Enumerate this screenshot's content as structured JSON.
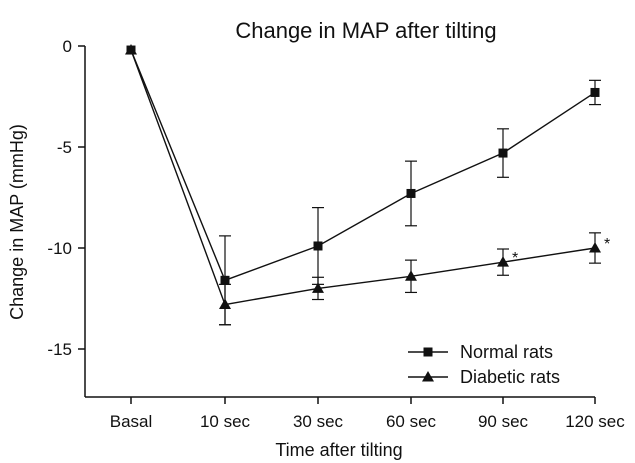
{
  "chart_data": {
    "type": "line",
    "title": "Change in MAP after tilting",
    "xlabel": "Time after tilting",
    "ylabel": "Change in MAP (mmHg)",
    "categories": [
      "Basal",
      "10 sec",
      "30 sec",
      "60 sec",
      "90 sec",
      "120 sec"
    ],
    "ylim": [
      -17.5,
      0
    ],
    "yticks": [
      0,
      -5,
      -10,
      -15
    ],
    "grid": false,
    "legend_position": "bottom-right",
    "series": [
      {
        "name": "Normal rats",
        "marker": "square",
        "values": [
          -0.2,
          -11.6,
          -9.9,
          -7.3,
          -5.3,
          -2.3
        ],
        "error": [
          0,
          2.2,
          1.9,
          1.6,
          1.2,
          0.6
        ]
      },
      {
        "name": "Diabetic rats",
        "marker": "triangle",
        "values": [
          -0.2,
          -12.8,
          -12.0,
          -11.4,
          -10.7,
          -10.0
        ],
        "error": [
          0,
          1.0,
          0.55,
          0.8,
          0.65,
          0.75
        ]
      }
    ],
    "annotations": [
      {
        "category": "90 sec",
        "series": "Diabetic rats",
        "text": "*"
      },
      {
        "category": "120 sec",
        "series": "Diabetic rats",
        "text": "*"
      }
    ]
  }
}
